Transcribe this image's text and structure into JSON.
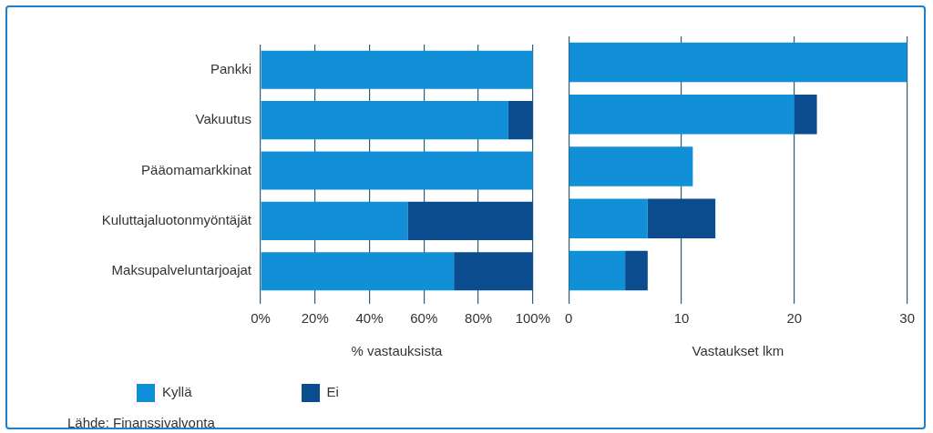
{
  "chart_data": [
    {
      "type": "bar",
      "orientation": "horizontal",
      "stacked": true,
      "categories": [
        "Pankki",
        "Vakuutus",
        "Pääomamarkkinat",
        "Kuluttajaluotonmyöntäjät",
        "Maksupalveluntarjoajat"
      ],
      "series": [
        {
          "name": "Kyllä",
          "color": "#1190d8",
          "values": [
            100,
            91,
            100,
            54,
            71
          ]
        },
        {
          "name": "Ei",
          "color": "#0b4c8f",
          "values": [
            0,
            9,
            0,
            46,
            29
          ]
        }
      ],
      "xlim": [
        0,
        100
      ],
      "xticks": [
        {
          "value": 0,
          "label": "0%"
        },
        {
          "value": 20,
          "label": "20%"
        },
        {
          "value": 40,
          "label": "40%"
        },
        {
          "value": 60,
          "label": "60%"
        },
        {
          "value": 80,
          "label": "80%"
        },
        {
          "value": 100,
          "label": "100%"
        }
      ],
      "xlabel": "% vastauksista",
      "grid": "x",
      "legend": "bottom",
      "annotations": [
        "Lähde: Finanssivalvonta"
      ]
    },
    {
      "type": "bar",
      "orientation": "horizontal",
      "stacked": true,
      "categories": [
        null,
        null,
        null,
        null,
        null
      ],
      "series": [
        {
          "color": "#1190d8",
          "values": [
            30,
            20,
            11,
            7,
            5
          ]
        },
        {
          "color": "#0b4c8f",
          "values": [
            0,
            2,
            0,
            6,
            2
          ]
        }
      ],
      "xlim": [
        0,
        30
      ],
      "xticks": [
        0,
        10,
        20,
        30
      ],
      "xlabel": "Vastaukset lkm",
      "grid": "x",
      "tick_labels": "x"
    }
  ]
}
